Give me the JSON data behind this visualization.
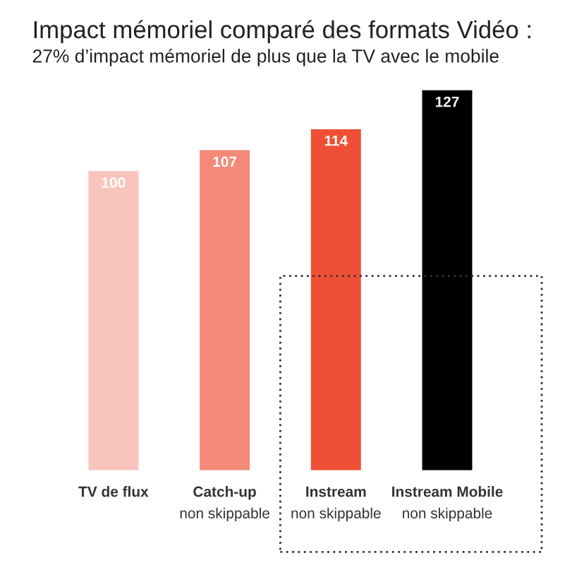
{
  "chart_data": {
    "type": "bar",
    "title": "Impact mémoriel comparé des formats Vidéo :",
    "subtitle": "27% d’impact mémoriel de plus que la TV avec le mobile",
    "categories": [
      "TV de flux",
      "Catch-up\nnon skippable",
      "Instream\nnon skippable",
      "Instream Mobile\nnon skippable"
    ],
    "values": [
      100,
      107,
      114,
      127
    ],
    "colors": [
      "#f9c4bc",
      "#f48a78",
      "#ef5035",
      "#000000"
    ],
    "data_labels": true
  }
}
